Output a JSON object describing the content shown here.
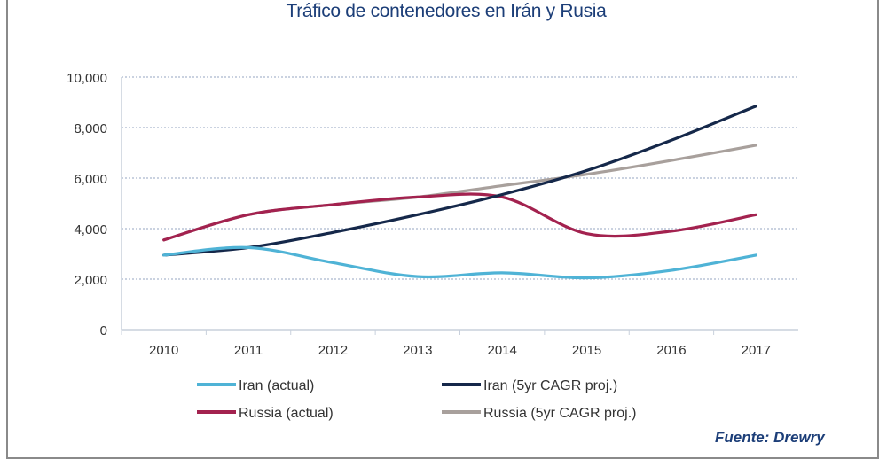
{
  "title": "Tráfico de contenedores en Irán y Rusia",
  "source": "Fuente: Drewry",
  "chart_data": {
    "type": "line",
    "title": "Tráfico de contenedores en Irán y Rusia",
    "xlabel": "",
    "ylabel": "",
    "categories": [
      "2010",
      "2011",
      "2012",
      "2013",
      "2014",
      "2015",
      "2016",
      "2017"
    ],
    "ylim": [
      0,
      10000
    ],
    "yticks": [
      0,
      2000,
      4000,
      6000,
      8000,
      10000
    ],
    "ytick_labels": [
      "0",
      "2,000",
      "4,000",
      "6,000",
      "8,000",
      "10,000"
    ],
    "grid": true,
    "legend_position": "bottom",
    "series": [
      {
        "name": "Iran (actual)",
        "color": "#4fb3d6",
        "values": [
          2950,
          3250,
          2650,
          2100,
          2250,
          2050,
          2350,
          2950
        ]
      },
      {
        "name": "Iran (5yr CAGR proj.)",
        "color": "#15284a",
        "values": [
          2950,
          3250,
          3850,
          4550,
          5350,
          6300,
          7500,
          8850
        ]
      },
      {
        "name": "Russia (actual)",
        "color": "#a3224f",
        "values": [
          3550,
          4550,
          4950,
          5250,
          5250,
          3800,
          3900,
          4550
        ]
      },
      {
        "name": "Russia (5yr CAGR proj.)",
        "color": "#a8a09c",
        "values": [
          3550,
          4550,
          4950,
          5250,
          5700,
          6150,
          6700,
          7300
        ]
      }
    ]
  }
}
